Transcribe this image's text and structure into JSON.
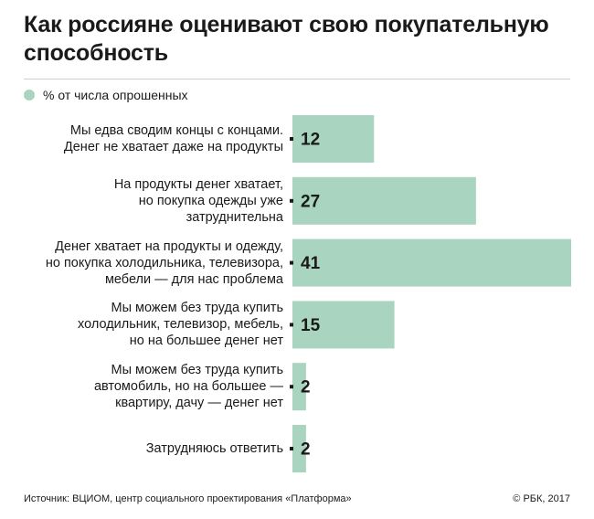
{
  "title": "Как россияне оценивают свою покупательную способность",
  "legend": "% от числа опрошенных",
  "footer": {
    "source": "Источник: ВЦИОМ, центр социального проектирования «Платформа»",
    "credit": "© РБК, 2017"
  },
  "colors": {
    "bar": "#a9d4bf",
    "text": "#1a1a1a"
  },
  "chart_data": {
    "type": "bar",
    "orientation": "horizontal",
    "series": [
      {
        "name": "% от числа опрошенных",
        "values": [
          12,
          27,
          41,
          15,
          2,
          2
        ]
      }
    ],
    "categories": [
      [
        "Мы едва сводим концы с концами.",
        "Денег не хватает даже на продукты"
      ],
      [
        "На продукты денег хватает,",
        "но покупка одежды уже",
        "затруднительна"
      ],
      [
        "Денег хватает на продукты и одежду,",
        "но покупка холодильника, телевизора,",
        "мебели — для нас проблема"
      ],
      [
        "Мы можем без труда купить",
        "холодильник, телевизор, мебель,",
        "но на большее денег нет"
      ],
      [
        "Мы можем без труда купить",
        "автомобиль, но на большее —",
        "квартиру, дачу — денег нет"
      ],
      [
        "Затрудняюсь ответить"
      ]
    ],
    "values": [
      12,
      27,
      41,
      15,
      2,
      2
    ],
    "data_labels": [
      "12",
      "27",
      "41",
      "15",
      "2",
      "2"
    ],
    "legend_position": "top-left",
    "grid": false
  }
}
